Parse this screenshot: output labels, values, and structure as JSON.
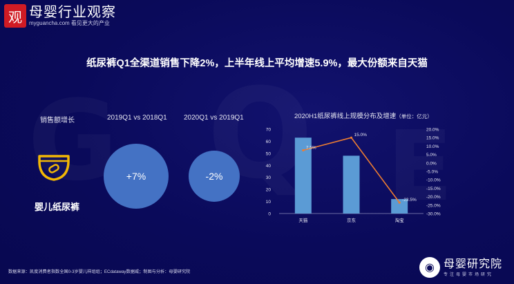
{
  "header": {
    "logo_char": "观",
    "logo_name": "母婴行业观察",
    "logo_tagline": "myguancha.com 看见更大的产业"
  },
  "title": "纸尿裤Q1全渠道销售下降2%，上半年线上平均增速5.9%，最大份额来自天猫",
  "left_panel": {
    "metric_label": "销售额增长",
    "col1_label": "2019Q1 vs 2018Q1",
    "col2_label": "2020Q1 vs 2019Q1",
    "product": "婴儿纸尿裤",
    "product_icon": "diaper-icon",
    "col1_value": "+7%",
    "col2_value": "-2%",
    "circle_color": "#4472c4"
  },
  "chart_data": {
    "type": "bar",
    "title": "2020H1纸尿裤线上规模分布及增速",
    "unit_note": "（单位：亿元）",
    "categories": [
      "天猫",
      "京东",
      "淘宝"
    ],
    "series": [
      {
        "type": "bar",
        "axis": "left",
        "values": [
          63,
          48,
          12
        ],
        "color": "#5b9bd5"
      },
      {
        "type": "line",
        "axis": "right",
        "values": [
          7.5,
          15.0,
          -23.5
        ],
        "labels": [
          "7.5%",
          "15.0%",
          "-23.5%"
        ],
        "color": "#ed7d31"
      }
    ],
    "y_left": {
      "min": 0,
      "max": 70,
      "ticks": [
        "0",
        "10",
        "20",
        "30",
        "40",
        "50",
        "60",
        "70"
      ]
    },
    "y_right": {
      "min": -30,
      "max": 20,
      "ticks": [
        "-30.0%",
        "-25.0%",
        "-20.0%",
        "-15.0%",
        "-10.0%",
        "-5.0%",
        "0.0%",
        "5.0%",
        "10.0%",
        "15.0%",
        "20.0%"
      ]
    },
    "grid": false
  },
  "footer": {
    "source": "数据来源：凯度消费者指数全国0-3岁婴儿样组组；ECdataway数据威；制图与分析：母婴研究院",
    "brand_name": "母婴研究院",
    "brand_sub": "专注母婴市场研究",
    "brand_icon": "owl-icon"
  }
}
